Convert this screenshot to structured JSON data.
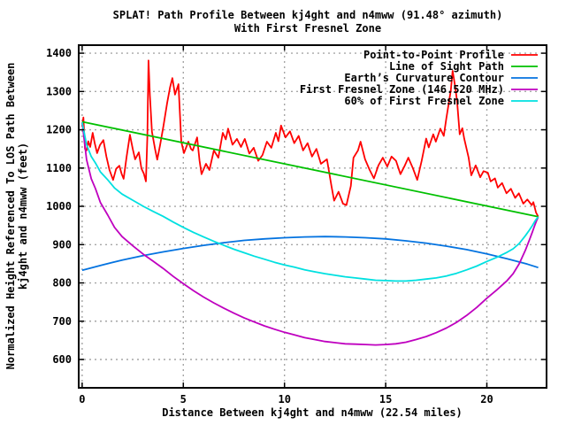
{
  "page": {
    "background": "#ffffff",
    "plot_border_color": "#000000",
    "grid_color": "#a6a6a6"
  },
  "chart_data": {
    "type": "line",
    "title": [
      "SPLAT! Path Profile Between kj4ght and n4mww (91.48° azimuth)",
      "With First Fresnel Zone"
    ],
    "xlabel": "Distance Between kj4ght and n4mww (22.54 miles)",
    "ylabel": [
      "Normalized Height Referenced To LOS Path Between",
      "kj4ght and n4mww (feet)"
    ],
    "xlim": [
      -0.17,
      22.95
    ],
    "ylim": [
      526,
      1421
    ],
    "xticks": [
      0,
      5,
      10,
      15,
      20
    ],
    "yticks": [
      600,
      700,
      800,
      900,
      1000,
      1100,
      1200,
      1300,
      1400
    ],
    "grid": true,
    "legend_position": "top-right",
    "path_length_miles": 22.54,
    "series": [
      {
        "id": "profile",
        "name": "Point-to-Point Profile",
        "color": "#ff0000",
        "points": [
          [
            0,
            1208
          ],
          [
            0.06,
            1232
          ],
          [
            0.14,
            1150
          ],
          [
            0.22,
            1146
          ],
          [
            0.3,
            1170
          ],
          [
            0.4,
            1155
          ],
          [
            0.52,
            1192
          ],
          [
            0.62,
            1165
          ],
          [
            0.74,
            1139
          ],
          [
            0.88,
            1160
          ],
          [
            1.05,
            1173
          ],
          [
            1.2,
            1130
          ],
          [
            1.35,
            1095
          ],
          [
            1.53,
            1069
          ],
          [
            1.68,
            1098
          ],
          [
            1.84,
            1106
          ],
          [
            1.95,
            1085
          ],
          [
            2.05,
            1072
          ],
          [
            2.2,
            1130
          ],
          [
            2.36,
            1187
          ],
          [
            2.5,
            1150
          ],
          [
            2.62,
            1123
          ],
          [
            2.8,
            1141
          ],
          [
            2.93,
            1099
          ],
          [
            3.05,
            1085
          ],
          [
            3.15,
            1065
          ],
          [
            3.22,
            1180
          ],
          [
            3.28,
            1381
          ],
          [
            3.35,
            1290
          ],
          [
            3.45,
            1195
          ],
          [
            3.6,
            1150
          ],
          [
            3.71,
            1122
          ],
          [
            3.85,
            1160
          ],
          [
            4.02,
            1211
          ],
          [
            4.2,
            1270
          ],
          [
            4.34,
            1310
          ],
          [
            4.46,
            1335
          ],
          [
            4.59,
            1292
          ],
          [
            4.76,
            1319
          ],
          [
            4.9,
            1169
          ],
          [
            5.03,
            1139
          ],
          [
            5.25,
            1169
          ],
          [
            5.38,
            1150
          ],
          [
            5.47,
            1146
          ],
          [
            5.68,
            1180
          ],
          [
            5.8,
            1120
          ],
          [
            5.9,
            1084
          ],
          [
            6.12,
            1111
          ],
          [
            6.29,
            1095
          ],
          [
            6.51,
            1146
          ],
          [
            6.73,
            1127
          ],
          [
            6.95,
            1192
          ],
          [
            7.1,
            1175
          ],
          [
            7.21,
            1203
          ],
          [
            7.43,
            1161
          ],
          [
            7.65,
            1176
          ],
          [
            7.85,
            1155
          ],
          [
            8.04,
            1176
          ],
          [
            8.26,
            1138
          ],
          [
            8.48,
            1153
          ],
          [
            8.7,
            1119
          ],
          [
            8.91,
            1134
          ],
          [
            9.13,
            1169
          ],
          [
            9.35,
            1153
          ],
          [
            9.57,
            1192
          ],
          [
            9.7,
            1170
          ],
          [
            9.83,
            1211
          ],
          [
            10.05,
            1180
          ],
          [
            10.27,
            1196
          ],
          [
            10.48,
            1165
          ],
          [
            10.7,
            1184
          ],
          [
            10.92,
            1146
          ],
          [
            11.14,
            1165
          ],
          [
            11.36,
            1130
          ],
          [
            11.58,
            1150
          ],
          [
            11.8,
            1111
          ],
          [
            12.1,
            1123
          ],
          [
            12.32,
            1053
          ],
          [
            12.45,
            1015
          ],
          [
            12.67,
            1038
          ],
          [
            12.89,
            1007
          ],
          [
            13.06,
            1003
          ],
          [
            13.28,
            1053
          ],
          [
            13.41,
            1127
          ],
          [
            13.63,
            1146
          ],
          [
            13.76,
            1169
          ],
          [
            13.98,
            1123
          ],
          [
            14.2,
            1096
          ],
          [
            14.42,
            1073
          ],
          [
            14.64,
            1107
          ],
          [
            14.86,
            1127
          ],
          [
            15.08,
            1104
          ],
          [
            15.29,
            1130
          ],
          [
            15.51,
            1119
          ],
          [
            15.73,
            1084
          ],
          [
            15.95,
            1107
          ],
          [
            16.12,
            1127
          ],
          [
            16.34,
            1100
          ],
          [
            16.56,
            1069
          ],
          [
            16.78,
            1119
          ],
          [
            17,
            1177
          ],
          [
            17.13,
            1154
          ],
          [
            17.35,
            1188
          ],
          [
            17.48,
            1169
          ],
          [
            17.7,
            1203
          ],
          [
            17.87,
            1184
          ],
          [
            18,
            1230
          ],
          [
            18.13,
            1273
          ],
          [
            18.22,
            1304
          ],
          [
            18.31,
            1354
          ],
          [
            18.44,
            1311
          ],
          [
            18.53,
            1273
          ],
          [
            18.66,
            1188
          ],
          [
            18.79,
            1204
          ],
          [
            18.88,
            1177
          ],
          [
            19.1,
            1127
          ],
          [
            19.23,
            1081
          ],
          [
            19.45,
            1107
          ],
          [
            19.67,
            1076
          ],
          [
            19.84,
            1092
          ],
          [
            20.05,
            1088
          ],
          [
            20.19,
            1065
          ],
          [
            20.4,
            1073
          ],
          [
            20.54,
            1049
          ],
          [
            20.75,
            1061
          ],
          [
            20.97,
            1034
          ],
          [
            21.19,
            1046
          ],
          [
            21.4,
            1022
          ],
          [
            21.58,
            1034
          ],
          [
            21.8,
            1007
          ],
          [
            22,
            1018
          ],
          [
            22.22,
            1003
          ],
          [
            22.3,
            1011
          ],
          [
            22.43,
            984
          ],
          [
            22.54,
            973
          ]
        ]
      },
      {
        "id": "los",
        "name": "Line of Sight Path",
        "color": "#00c000",
        "points": [
          [
            0,
            1221
          ],
          [
            22.54,
            973
          ]
        ]
      },
      {
        "id": "earth-curvature",
        "name": "Earth’s Curvature Contour",
        "color": "#0473e0",
        "points": [
          [
            0,
            833
          ],
          [
            1,
            847
          ],
          [
            2,
            860
          ],
          [
            3,
            871
          ],
          [
            4,
            881
          ],
          [
            5,
            890
          ],
          [
            6,
            898
          ],
          [
            7,
            905
          ],
          [
            8,
            911
          ],
          [
            9,
            915
          ],
          [
            10,
            918
          ],
          [
            11,
            920
          ],
          [
            12,
            921
          ],
          [
            13,
            920
          ],
          [
            14,
            918
          ],
          [
            15,
            915
          ],
          [
            16,
            910
          ],
          [
            17,
            904
          ],
          [
            18,
            896
          ],
          [
            19,
            887
          ],
          [
            20,
            876
          ],
          [
            21,
            863
          ],
          [
            22,
            849
          ],
          [
            22.54,
            840
          ]
        ]
      },
      {
        "id": "fresnel",
        "name": "First Fresnel Zone (146.520 MHz)",
        "color": "#bf00bf",
        "points": [
          [
            0,
            1219
          ],
          [
            0.22,
            1122
          ],
          [
            0.45,
            1072
          ],
          [
            0.66,
            1046
          ],
          [
            0.9,
            1010
          ],
          [
            1.27,
            977
          ],
          [
            1.6,
            945
          ],
          [
            1.97,
            921
          ],
          [
            2.5,
            897
          ],
          [
            3.02,
            875
          ],
          [
            3.5,
            857
          ],
          [
            4,
            838
          ],
          [
            4.5,
            817
          ],
          [
            5,
            798
          ],
          [
            5.5,
            780
          ],
          [
            6,
            763
          ],
          [
            6.5,
            748
          ],
          [
            7,
            734
          ],
          [
            7.5,
            721
          ],
          [
            8,
            709
          ],
          [
            8.5,
            698
          ],
          [
            9,
            688
          ],
          [
            9.5,
            679
          ],
          [
            10,
            671
          ],
          [
            10.5,
            664
          ],
          [
            11,
            657
          ],
          [
            11.5,
            652
          ],
          [
            12,
            647
          ],
          [
            12.5,
            644
          ],
          [
            13,
            641
          ],
          [
            13.5,
            640
          ],
          [
            14,
            639
          ],
          [
            14.5,
            638
          ],
          [
            15,
            639
          ],
          [
            15.5,
            641
          ],
          [
            16,
            645
          ],
          [
            16.5,
            652
          ],
          [
            17,
            660
          ],
          [
            17.5,
            670
          ],
          [
            18,
            682
          ],
          [
            18.5,
            697
          ],
          [
            19,
            715
          ],
          [
            19.5,
            736
          ],
          [
            20,
            760
          ],
          [
            20.5,
            782
          ],
          [
            21,
            806
          ],
          [
            21.3,
            824
          ],
          [
            21.6,
            850
          ],
          [
            21.9,
            885
          ],
          [
            22.1,
            912
          ],
          [
            22.25,
            933
          ],
          [
            22.35,
            948
          ],
          [
            22.45,
            962
          ],
          [
            22.54,
            972
          ]
        ]
      },
      {
        "id": "fresnel60",
        "name": "60% of First Fresnel Zone",
        "color": "#00e0e0",
        "points": [
          [
            0,
            1219
          ],
          [
            0.22,
            1161
          ],
          [
            0.45,
            1130
          ],
          [
            0.66,
            1113
          ],
          [
            0.9,
            1090
          ],
          [
            1.27,
            1069
          ],
          [
            1.6,
            1048
          ],
          [
            1.97,
            1032
          ],
          [
            2.5,
            1016
          ],
          [
            3.02,
            1000
          ],
          [
            3.5,
            987
          ],
          [
            4,
            974
          ],
          [
            4.5,
            959
          ],
          [
            5,
            945
          ],
          [
            5.5,
            932
          ],
          [
            6,
            920
          ],
          [
            6.5,
            909
          ],
          [
            7,
            898
          ],
          [
            7.5,
            888
          ],
          [
            8,
            879
          ],
          [
            8.5,
            870
          ],
          [
            9,
            862
          ],
          [
            9.5,
            854
          ],
          [
            10,
            847
          ],
          [
            10.5,
            841
          ],
          [
            11,
            834
          ],
          [
            11.5,
            829
          ],
          [
            12,
            824
          ],
          [
            12.5,
            820
          ],
          [
            13,
            816
          ],
          [
            13.5,
            813
          ],
          [
            14,
            810
          ],
          [
            14.5,
            807
          ],
          [
            15,
            806
          ],
          [
            15.5,
            805
          ],
          [
            16,
            805
          ],
          [
            16.5,
            807
          ],
          [
            17,
            810
          ],
          [
            17.5,
            813
          ],
          [
            18,
            818
          ],
          [
            18.5,
            825
          ],
          [
            19,
            834
          ],
          [
            19.5,
            844
          ],
          [
            20,
            856
          ],
          [
            20.5,
            867
          ],
          [
            21,
            880
          ],
          [
            21.3,
            889
          ],
          [
            21.6,
            903
          ],
          [
            21.9,
            923
          ],
          [
            22.1,
            938
          ],
          [
            22.25,
            950
          ],
          [
            22.35,
            959
          ],
          [
            22.45,
            967
          ],
          [
            22.54,
            972
          ]
        ]
      }
    ]
  }
}
